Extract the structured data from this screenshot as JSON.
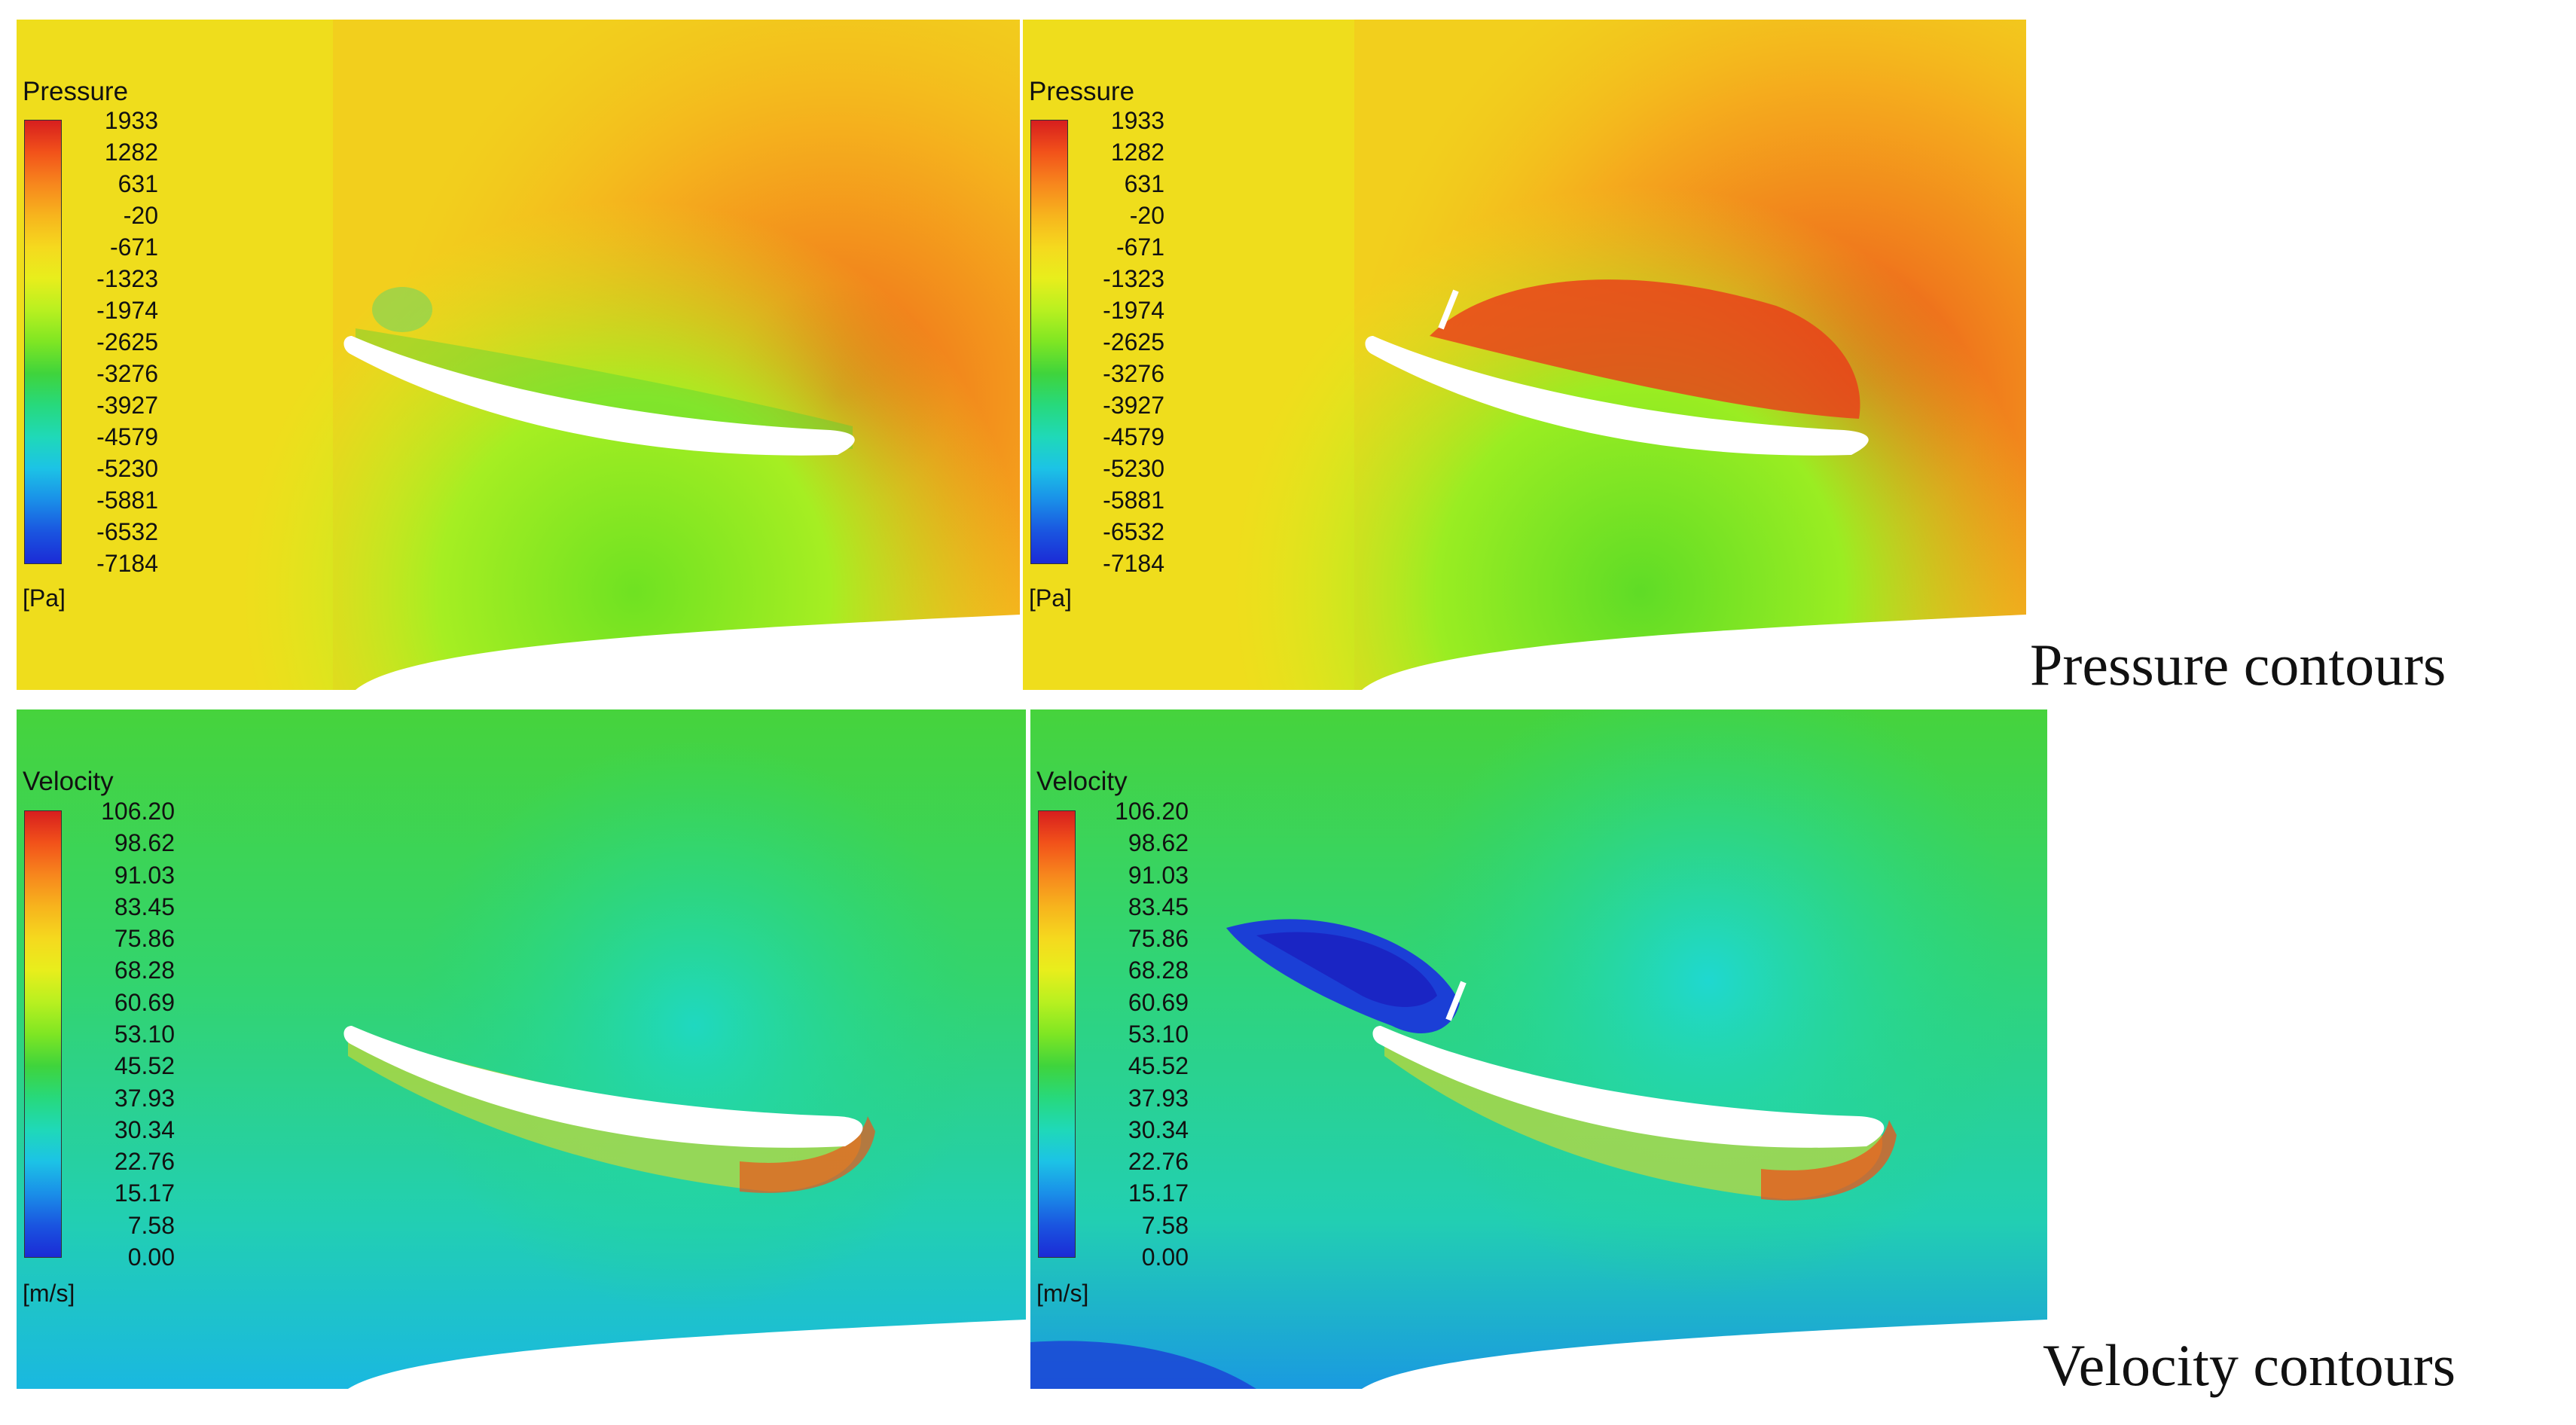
{
  "pressure_legend": {
    "title": "Pressure",
    "unit": "[Pa]",
    "ticks": [
      "1933",
      "1282",
      "631",
      "-20",
      "-671",
      "-1323",
      "-1974",
      "-2625",
      "-3276",
      "-3927",
      "-4579",
      "-5230",
      "-5881",
      "-6532",
      "-7184"
    ]
  },
  "velocity_legend": {
    "title": "Velocity",
    "unit": "[m/s]",
    "ticks": [
      "106.20",
      "98.62",
      "91.03",
      "83.45",
      "75.86",
      "68.28",
      "60.69",
      "53.10",
      "45.52",
      "37.93",
      "30.34",
      "22.76",
      "15.17",
      "7.58",
      "0.00"
    ]
  },
  "captions": {
    "pressure": "Pressure  contours",
    "velocity": "Velocity contours"
  },
  "colors": {
    "scale": [
      "#d71e1e",
      "#f2521a",
      "#f7861d",
      "#f7b41d",
      "#f5d91e",
      "#e8ee1c",
      "#b8f020",
      "#7fe623",
      "#3fd43c",
      "#27d97c",
      "#1fd9b8",
      "#1cc3e6",
      "#1a8fe8",
      "#1a55e0",
      "#1b2bd6"
    ]
  }
}
